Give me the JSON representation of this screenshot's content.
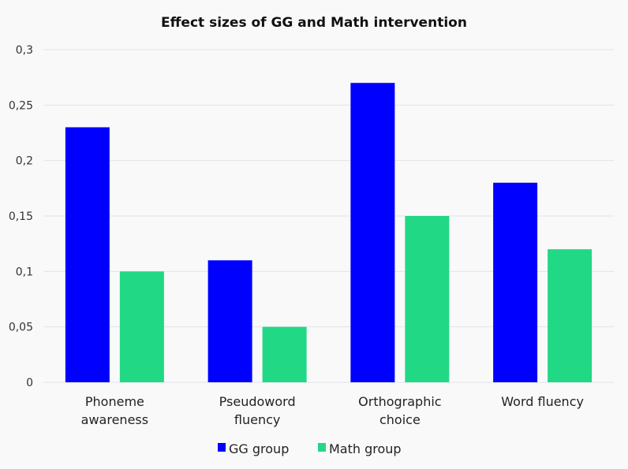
{
  "chart_data": {
    "type": "bar",
    "title": "Effect sizes of GG and Math intervention",
    "xlabel": "",
    "ylabel": "",
    "categories": [
      [
        "Phoneme",
        "awareness"
      ],
      [
        "Pseudoword",
        "fluency"
      ],
      [
        "Orthographic",
        "choice"
      ],
      [
        "Word fluency"
      ]
    ],
    "series": [
      {
        "name": "GG group",
        "color": "#0000ff",
        "values": [
          0.23,
          0.11,
          0.27,
          0.18
        ]
      },
      {
        "name": "Math group",
        "color": "#21d885",
        "values": [
          0.1,
          0.05,
          0.15,
          0.12
        ]
      }
    ],
    "ylim": [
      0,
      0.3
    ],
    "yticks": [
      0,
      0.05,
      0.1,
      0.15,
      0.2,
      0.25,
      0.3
    ],
    "ytick_labels": [
      "0",
      "0,05",
      "0,1",
      "0,15",
      "0,2",
      "0,25",
      "0,3"
    ],
    "grid": true,
    "legend": "bottom-center"
  }
}
